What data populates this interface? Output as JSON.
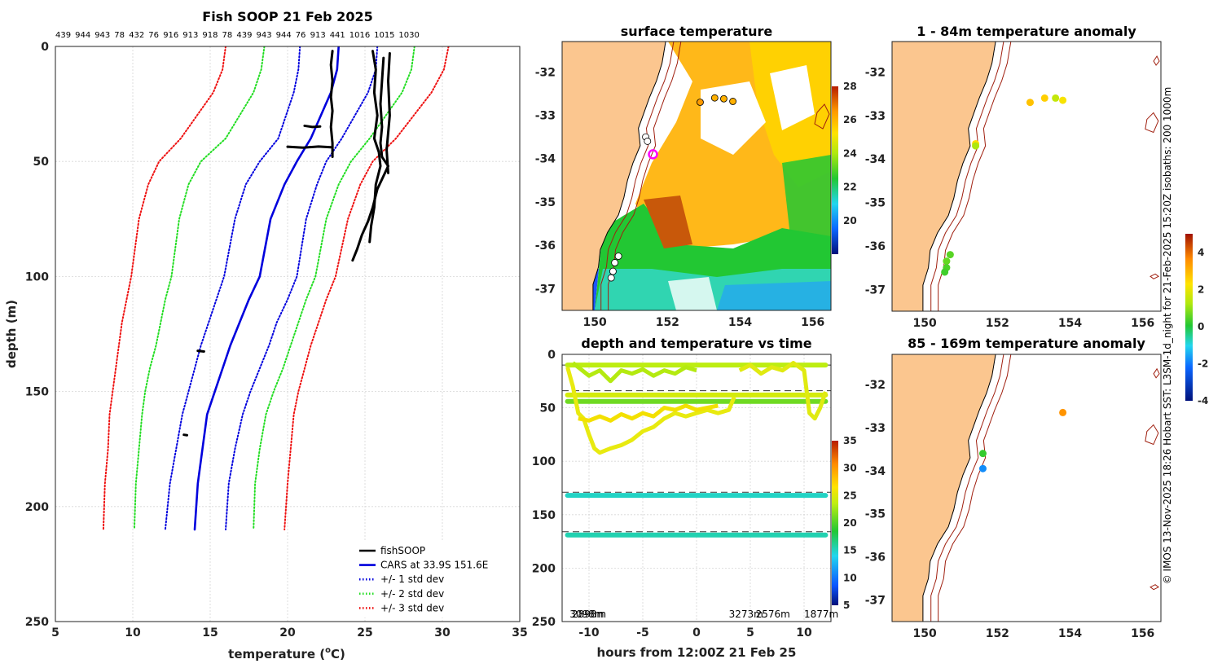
{
  "chart_data": [
    {
      "id": "profile",
      "type": "line",
      "title": "Fish SOOP 21 Feb 2025",
      "top_labels": [
        "439",
        "944",
        "943",
        "78",
        "432",
        "76",
        "916",
        "913",
        "918",
        "78",
        "439",
        "943",
        "944",
        "76",
        "913",
        "441",
        "1016",
        "1015",
        "1030"
      ],
      "xlabel_main": "temperature (",
      "xlabel_sup": "o",
      "xlabel_tail": "C)",
      "ylabel": "depth (m)",
      "xlim": [
        5,
        35
      ],
      "ylim": [
        250,
        0
      ],
      "xticks": [
        "5",
        "10",
        "15",
        "20",
        "25",
        "30",
        "35"
      ],
      "yticks": [
        "0",
        "50",
        "100",
        "150",
        "200",
        "250"
      ],
      "legend": [
        {
          "label": "fishSOOP",
          "color": "#000000",
          "style": "solid"
        },
        {
          "label": "CARS at 33.9S 151.6E",
          "color": "#0000dd",
          "style": "solid"
        },
        {
          "label": "+/- 1 std dev",
          "color": "#0000dd",
          "style": "dotted"
        },
        {
          "label": "+/- 2 std dev",
          "color": "#22dd22",
          "style": "dotted"
        },
        {
          "label": "+/- 3 std dev",
          "color": "#ee1111",
          "style": "dotted"
        }
      ],
      "series": [
        {
          "name": "CARS at 33.9S 151.6E",
          "color": "#0000dd",
          "style": "solid",
          "x": [
            23.3,
            23.2,
            22.8,
            21.5,
            20.6,
            19.8,
            18.9,
            18.2,
            17.5,
            16.9,
            16.3,
            15.8,
            15.3,
            14.8,
            14.5,
            14.2,
            14.0
          ],
          "y": [
            0,
            10,
            20,
            40,
            50,
            60,
            75,
            100,
            110,
            120,
            130,
            140,
            150,
            160,
            175,
            190,
            210
          ]
        },
        {
          "name": "+/- 1 std dev low",
          "color": "#0000dd",
          "style": "dotted",
          "x": [
            20.8,
            20.7,
            20.4,
            19.4,
            18.2,
            17.3,
            16.6,
            15.9,
            15.4,
            14.9,
            14.4,
            14.0,
            13.6,
            13.2,
            12.8,
            12.4,
            12.1
          ],
          "y": [
            0,
            10,
            20,
            40,
            50,
            60,
            75,
            100,
            110,
            120,
            130,
            140,
            150,
            160,
            175,
            190,
            210
          ]
        },
        {
          "name": "+/- 1 std dev high",
          "color": "#0000dd",
          "style": "dotted",
          "x": [
            25.8,
            25.7,
            25.2,
            23.5,
            22.5,
            21.9,
            21.2,
            20.6,
            20.0,
            19.3,
            18.8,
            18.2,
            17.6,
            17.1,
            16.6,
            16.2,
            16.0
          ],
          "y": [
            0,
            10,
            20,
            40,
            50,
            60,
            75,
            100,
            110,
            120,
            130,
            140,
            150,
            160,
            175,
            190,
            210
          ]
        },
        {
          "name": "+/- 2 std dev low",
          "color": "#22dd22",
          "style": "dotted",
          "x": [
            18.5,
            18.3,
            17.8,
            16.0,
            14.4,
            13.6,
            13.0,
            12.5,
            12.1,
            11.8,
            11.5,
            11.1,
            10.8,
            10.6,
            10.4,
            10.2,
            10.1
          ],
          "y": [
            0,
            10,
            20,
            40,
            50,
            60,
            75,
            100,
            110,
            120,
            130,
            140,
            150,
            160,
            175,
            190,
            210
          ]
        },
        {
          "name": "+/- 2 std dev high",
          "color": "#22dd22",
          "style": "dotted",
          "x": [
            28.2,
            28.0,
            27.4,
            25.3,
            24.1,
            23.3,
            22.5,
            21.8,
            21.2,
            20.7,
            20.2,
            19.7,
            19.1,
            18.6,
            18.2,
            17.9,
            17.8
          ],
          "y": [
            0,
            10,
            20,
            40,
            50,
            60,
            75,
            100,
            110,
            120,
            130,
            140,
            150,
            160,
            175,
            190,
            210
          ]
        },
        {
          "name": "+/- 3 std dev low",
          "color": "#ee1111",
          "style": "dotted",
          "x": [
            16.0,
            15.8,
            15.2,
            13.1,
            11.7,
            11.0,
            10.4,
            9.9,
            9.6,
            9.3,
            9.1,
            8.9,
            8.7,
            8.5,
            8.4,
            8.2,
            8.1
          ],
          "y": [
            0,
            10,
            20,
            40,
            50,
            60,
            75,
            100,
            110,
            120,
            130,
            140,
            150,
            160,
            175,
            190,
            210
          ]
        },
        {
          "name": "+/- 3 std dev high",
          "color": "#ee1111",
          "style": "dotted",
          "x": [
            30.4,
            30.1,
            29.3,
            27.0,
            25.5,
            24.7,
            23.9,
            23.1,
            22.5,
            22.0,
            21.5,
            21.1,
            20.7,
            20.4,
            20.2,
            20.0,
            19.8
          ],
          "y": [
            0,
            10,
            20,
            40,
            50,
            60,
            75,
            100,
            110,
            120,
            130,
            140,
            150,
            160,
            175,
            190,
            210
          ]
        },
        {
          "name": "fishSOOP a",
          "color": "#000000",
          "style": "solid",
          "x": [
            22.9,
            22.8,
            22.9,
            22.8,
            22.9,
            22.8,
            22.9,
            22.9
          ],
          "y": [
            2,
            8,
            15,
            22,
            28,
            35,
            42,
            48
          ]
        },
        {
          "name": "fishSOOP b",
          "color": "#000000",
          "style": "solid",
          "x": [
            25.5,
            25.7,
            25.6,
            25.8,
            25.6,
            25.9,
            26.0,
            25.7,
            25.6,
            25.4,
            25.3
          ],
          "y": [
            2,
            10,
            20,
            30,
            40,
            46,
            52,
            60,
            70,
            78,
            85
          ]
        },
        {
          "name": "fishSOOP c",
          "color": "#000000",
          "style": "solid",
          "x": [
            26.2,
            26.1,
            26.0,
            26.1,
            26.0,
            26.1,
            26.5,
            25.8,
            25.5,
            25.2,
            24.8,
            24.5,
            24.2
          ],
          "y": [
            5,
            15,
            25,
            35,
            42,
            48,
            52,
            62,
            70,
            76,
            82,
            88,
            93
          ]
        },
        {
          "name": "fishSOOP d",
          "color": "#000000",
          "style": "solid",
          "x": [
            26.6,
            26.5,
            26.6,
            26.4,
            26.5
          ],
          "y": [
            3,
            15,
            30,
            45,
            55
          ]
        },
        {
          "name": "fishSOOP e",
          "color": "#000000",
          "style": "solid",
          "x": [
            20.0,
            21.0,
            22.0,
            22.8
          ],
          "y": [
            43.6,
            44.0,
            43.5,
            43.8
          ]
        },
        {
          "name": "fishSOOP f",
          "color": "#000000",
          "style": "solid",
          "x": [
            21.1,
            21.6,
            22.1
          ],
          "y": [
            34.5,
            35.0,
            34.8
          ]
        },
        {
          "name": "fishSOOP g",
          "color": "#000000",
          "style": "solid",
          "x": [
            14.2,
            14.6
          ],
          "y": [
            132.3,
            132.6
          ]
        },
        {
          "name": "fishSOOP h",
          "color": "#000000",
          "style": "solid",
          "x": [
            13.3,
            13.5
          ],
          "y": [
            168.8,
            169.0
          ]
        }
      ]
    },
    {
      "id": "sst-map",
      "type": "heatmap",
      "title": "surface temperature",
      "xticks": [
        "150",
        "152",
        "154",
        "156"
      ],
      "yticks": [
        "-32",
        "-33",
        "-34",
        "-35",
        "-36",
        "-37"
      ],
      "xlim": [
        149.1,
        156.5
      ],
      "ylim": [
        -37.5,
        -31.3
      ],
      "colorbar": {
        "min": 18,
        "max": 28,
        "ticks": [
          "20",
          "22",
          "24",
          "26",
          "28"
        ]
      }
    },
    {
      "id": "depth-time",
      "type": "scatter",
      "title": "depth and temperature vs time",
      "xlabel": "hours from 12:00Z 21 Feb 25",
      "xlim": [
        -12.5,
        12.5
      ],
      "ylim": [
        250,
        0
      ],
      "xticks": [
        "-10",
        "-5",
        "0",
        "5",
        "10"
      ],
      "yticks": [
        "0",
        "50",
        "100",
        "150",
        "200",
        "250"
      ],
      "colorbar": {
        "min": 5,
        "max": 35,
        "ticks": [
          "5",
          "10",
          "15",
          "20",
          "25",
          "30",
          "35"
        ]
      },
      "dashed_depths": [
        10,
        34,
        129,
        166
      ],
      "bottom_labels": [
        {
          "text": "3098m",
          "hour": -11.8
        },
        {
          "text": "2898m",
          "hour": -11.6
        },
        {
          "text": "3273m",
          "hour": 3.0
        },
        {
          "text": "2576m",
          "hour": 5.5
        },
        {
          "text": "1877m",
          "hour": 10.0
        }
      ],
      "series": [
        {
          "name": "10 m",
          "depth": 10,
          "temp": 23.5
        },
        {
          "name": "38 m",
          "depth": 38,
          "temp": 24.5
        },
        {
          "name": "44 m",
          "depth": 44,
          "temp": 21.0
        },
        {
          "name": "132 m",
          "depth": 132,
          "temp": 15.0
        },
        {
          "name": "169 m",
          "depth": 169,
          "temp": 15.5
        }
      ]
    },
    {
      "id": "anom-1-84",
      "type": "scatter",
      "title": "1 - 84m temperature anomaly",
      "xticks": [
        "150",
        "152",
        "154",
        "156"
      ],
      "yticks": [
        "-32",
        "-33",
        "-34",
        "-35",
        "-36",
        "-37"
      ],
      "points": [
        {
          "lon": 152.9,
          "lat": -32.7,
          "anom": 2.8
        },
        {
          "lon": 153.3,
          "lat": -32.6,
          "anom": 2.6
        },
        {
          "lon": 153.6,
          "lat": -32.6,
          "anom": 1.5
        },
        {
          "lon": 153.8,
          "lat": -32.65,
          "anom": 2.2
        },
        {
          "lon": 151.4,
          "lat": -33.65,
          "anom": 2.4
        },
        {
          "lon": 151.4,
          "lat": -33.7,
          "anom": 1.2
        },
        {
          "lon": 150.7,
          "lat": -36.2,
          "anom": 0.5
        },
        {
          "lon": 150.6,
          "lat": -36.35,
          "anom": 0.6
        },
        {
          "lon": 150.6,
          "lat": -36.5,
          "anom": 0.4
        },
        {
          "lon": 150.55,
          "lat": -36.6,
          "anom": 0.3
        }
      ]
    },
    {
      "id": "anom-85-169",
      "type": "scatter",
      "title": "85 - 169m temperature anomaly",
      "xticks": [
        "150",
        "152",
        "154",
        "156"
      ],
      "yticks": [
        "-32",
        "-33",
        "-34",
        "-35",
        "-36",
        "-37"
      ],
      "colorbar": {
        "min": -4,
        "max": 5,
        "ticks": [
          "-4",
          "-2",
          "0",
          "2",
          "4"
        ]
      },
      "points": [
        {
          "lon": 153.8,
          "lat": -32.65,
          "anom": 3.5
        },
        {
          "lon": 151.6,
          "lat": -33.6,
          "anom": 0.2
        },
        {
          "lon": 151.6,
          "lat": -33.95,
          "anom": -1.8
        }
      ]
    }
  ],
  "credit": "© IMOS 13-Nov-2025 18:26 Hobart SST: L3SM-1d_night for 21-Feb-2025 15:20Z isobaths: 200  1000m"
}
